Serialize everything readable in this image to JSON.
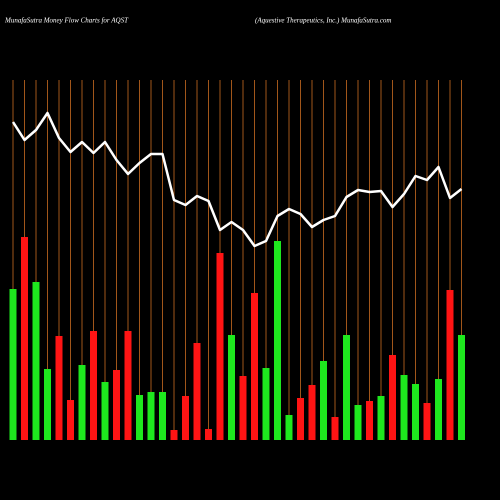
{
  "chart_data": {
    "type": "money-flow",
    "title": "MunafaSutra  Money Flow  Charts for AQST",
    "subtitle": "(Aquestive   Therapeutics,  Inc.) MunafaSutra.com",
    "grid": true,
    "grid_color": "#a0561a",
    "line_color": "#ffffff",
    "values": [
      151,
      203,
      158,
      71,
      104,
      40,
      75,
      109,
      58,
      70,
      109,
      45,
      48,
      48,
      10,
      44,
      97,
      11,
      187,
      105,
      64,
      147,
      72,
      199,
      25,
      42,
      55,
      79,
      23,
      105,
      35,
      39,
      44,
      85,
      65,
      56,
      37,
      61,
      150,
      105
    ],
    "colors": [
      "#1ee81e",
      "#ff1414",
      "#1ee81e",
      "#1ee81e",
      "#ff1414",
      "#ff1414",
      "#1ee81e",
      "#ff1414",
      "#1ee81e",
      "#ff1414",
      "#ff1414",
      "#1ee81e",
      "#1ee81e",
      "#1ee81e",
      "#ff1414",
      "#ff1414",
      "#ff1414",
      "#ff1414",
      "#ff1414",
      "#1ee81e",
      "#ff1414",
      "#ff1414",
      "#1ee81e",
      "#1ee81e",
      "#1ee81e",
      "#ff1414",
      "#ff1414",
      "#1ee81e",
      "#ff1414",
      "#1ee81e",
      "#1ee81e",
      "#ff1414",
      "#1ee81e",
      "#ff1414",
      "#1ee81e",
      "#1ee81e",
      "#ff1414",
      "#1ee81e",
      "#ff1414",
      "#1ee81e"
    ],
    "line": [
      318,
      300,
      310,
      327,
      302,
      288,
      298,
      287,
      298,
      280,
      266,
      277,
      286,
      286,
      240,
      235,
      244,
      239,
      210,
      218,
      210,
      194,
      199,
      224,
      231,
      226,
      213,
      220,
      224,
      243,
      250,
      248,
      249,
      233,
      246,
      264,
      260,
      273,
      242,
      251
    ]
  }
}
